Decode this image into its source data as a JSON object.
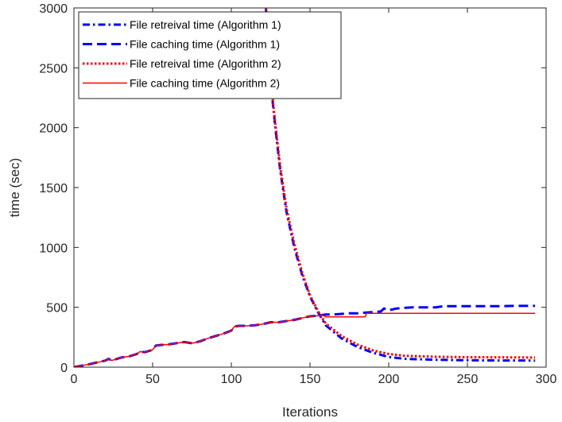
{
  "chart_data": {
    "type": "line",
    "xlabel": "Iterations",
    "ylabel": "time (sec)",
    "xlim": [
      0,
      300
    ],
    "ylim": [
      0,
      3000
    ],
    "xticks": [
      0,
      50,
      100,
      150,
      200,
      250,
      300
    ],
    "yticks": [
      0,
      500,
      1000,
      1500,
      2000,
      2500,
      3000
    ],
    "grid": false,
    "legend_position": "top-left",
    "series": [
      {
        "name": "File retreival time (Algorithm 1)",
        "color": "#0000ff",
        "style": "dashdot",
        "x": [
          122,
          123,
          125,
          128,
          131,
          135,
          140,
          145,
          150,
          155,
          160,
          170,
          180,
          190,
          200,
          210,
          230,
          250,
          270,
          293
        ],
        "y": [
          3000,
          2720,
          2380,
          2000,
          1650,
          1300,
          1000,
          770,
          590,
          460,
          350,
          240,
          170,
          120,
          85,
          70,
          62,
          58,
          56,
          55
        ]
      },
      {
        "name": "File caching time (Algorithm 1)",
        "color": "#0000ff",
        "style": "dashed",
        "x": [
          0,
          10,
          20,
          22,
          24,
          30,
          35,
          40,
          42,
          45,
          50,
          52,
          55,
          60,
          65,
          70,
          75,
          80,
          85,
          90,
          95,
          100,
          102,
          105,
          110,
          115,
          120,
          125,
          130,
          135,
          140,
          145,
          150,
          155,
          160,
          165,
          170,
          175,
          180,
          185,
          190,
          195,
          197,
          200,
          205,
          210,
          215,
          220,
          225,
          230,
          235,
          240,
          250,
          260,
          270,
          280,
          293
        ],
        "y": [
          0,
          25,
          55,
          70,
          55,
          80,
          90,
          110,
          130,
          125,
          145,
          180,
          185,
          190,
          200,
          210,
          200,
          215,
          240,
          260,
          280,
          305,
          340,
          345,
          345,
          350,
          360,
          375,
          375,
          385,
          395,
          410,
          425,
          430,
          440,
          440,
          445,
          450,
          450,
          455,
          460,
          465,
          490,
          475,
          490,
          495,
          500,
          500,
          500,
          500,
          510,
          510,
          510,
          510,
          510,
          512,
          512
        ]
      },
      {
        "name": "File retreival time (Algorithm 2)",
        "color": "#ff0000",
        "style": "dotted",
        "x": [
          122,
          123,
          125,
          128,
          131,
          135,
          140,
          145,
          150,
          155,
          160,
          170,
          180,
          190,
          200,
          210,
          230,
          250,
          270,
          293
        ],
        "y": [
          3000,
          2740,
          2400,
          2030,
          1680,
          1330,
          1030,
          790,
          600,
          470,
          365,
          260,
          190,
          140,
          110,
          95,
          87,
          83,
          82,
          80
        ]
      },
      {
        "name": "File caching time (Algorithm 2)",
        "color": "#ff0000",
        "style": "solid",
        "x": [
          0,
          10,
          20,
          22,
          24,
          30,
          35,
          40,
          42,
          45,
          50,
          52,
          55,
          60,
          65,
          70,
          75,
          80,
          85,
          90,
          95,
          100,
          102,
          105,
          110,
          115,
          120,
          125,
          130,
          135,
          140,
          145,
          150,
          155,
          158,
          160,
          165,
          170,
          175,
          180,
          185,
          186,
          190,
          200,
          220,
          250,
          270,
          293
        ],
        "y": [
          0,
          25,
          55,
          70,
          55,
          80,
          90,
          110,
          130,
          125,
          145,
          180,
          185,
          190,
          200,
          210,
          200,
          215,
          240,
          260,
          280,
          305,
          340,
          345,
          345,
          350,
          360,
          375,
          375,
          385,
          395,
          410,
          425,
          430,
          435,
          420,
          420,
          420,
          420,
          420,
          420,
          450,
          450,
          450,
          450,
          450,
          450,
          450
        ]
      }
    ]
  }
}
